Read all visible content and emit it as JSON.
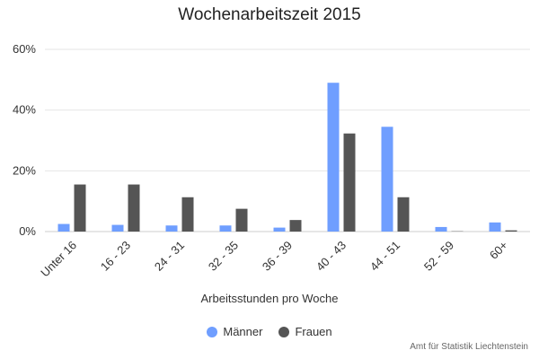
{
  "chart_data": {
    "type": "bar",
    "title": "Wochenarbeitszeit 2015",
    "xlabel": "Arbeitsstunden pro Woche",
    "ylabel": "",
    "ylim": [
      0,
      60
    ],
    "yticks": [
      0,
      20,
      40,
      60
    ],
    "ytick_labels": [
      "0%",
      "20%",
      "40%",
      "60%"
    ],
    "categories": [
      "Unter 16",
      "16 - 23",
      "24 - 31",
      "32 - 35",
      "36 - 39",
      "40 - 43",
      "44 - 51",
      "52 - 59",
      "60+"
    ],
    "series": [
      {
        "name": "Männer",
        "color": "#6f9eff",
        "values": [
          2.5,
          2.2,
          2.0,
          2.0,
          1.3,
          49.0,
          34.5,
          1.5,
          3.0
        ]
      },
      {
        "name": "Frauen",
        "color": "#555555",
        "values": [
          15.5,
          15.5,
          11.3,
          7.5,
          3.8,
          32.3,
          11.3,
          0.1,
          0.4
        ]
      }
    ],
    "grid": true,
    "legend_position": "bottom"
  },
  "legend": {
    "items": [
      {
        "label": "Männer",
        "color": "#6f9eff"
      },
      {
        "label": "Frauen",
        "color": "#555555"
      }
    ]
  },
  "credits": "Amt für Statistik Liechtenstein"
}
